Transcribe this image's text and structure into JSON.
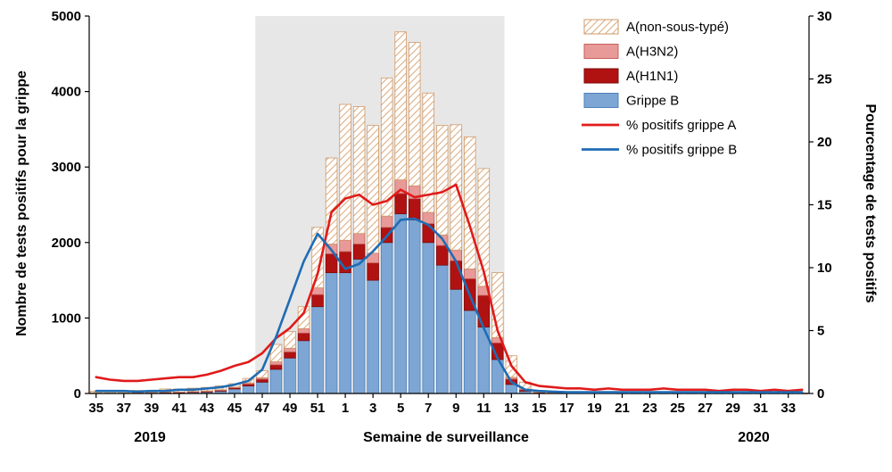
{
  "figure": {
    "left_axis_title": "Nombre de tests positifs pour la grippe",
    "right_axis_title": "Pourcentage de tests positifs",
    "x_axis_title": "Semaine de surveillance",
    "year_left": "2019",
    "year_right": "2020"
  },
  "chart_data": {
    "type": "bar",
    "subtype": "stacked-bars-with-lines",
    "title": "",
    "xlabel": "Semaine de surveillance",
    "x_year_left": "2019",
    "x_year_right": "2020",
    "y_left": {
      "label": "Nombre de tests positifs pour la grippe",
      "min": 0,
      "max": 5000,
      "ticks": [
        0,
        1000,
        2000,
        3000,
        4000,
        5000
      ]
    },
    "y_right": {
      "label": "Pourcentage de tests positifs",
      "min": 0,
      "max": 30,
      "ticks": [
        0,
        5,
        10,
        15,
        20,
        25,
        30
      ]
    },
    "weeks": [
      "35",
      "36",
      "37",
      "38",
      "39",
      "40",
      "41",
      "42",
      "43",
      "44",
      "45",
      "46",
      "47",
      "48",
      "49",
      "50",
      "51",
      "52",
      "1",
      "2",
      "3",
      "4",
      "5",
      "6",
      "7",
      "8",
      "9",
      "10",
      "11",
      "12",
      "13",
      "14",
      "15",
      "16",
      "17",
      "18",
      "19",
      "20",
      "21",
      "22",
      "23",
      "24",
      "25",
      "26",
      "27",
      "28",
      "29",
      "30",
      "31",
      "32",
      "33",
      "34"
    ],
    "x_tick_every": 2,
    "shaded_region": {
      "from_week": "47",
      "to_week": "12",
      "color": "#e7e7e7"
    },
    "bar_series": [
      {
        "key": "grippe-b",
        "name": "Grippe B",
        "color": "#7da6d4",
        "stroke": "#4f81bd",
        "values": [
          5,
          5,
          5,
          8,
          8,
          10,
          10,
          15,
          20,
          30,
          60,
          100,
          150,
          320,
          470,
          700,
          1150,
          1600,
          1600,
          1780,
          1500,
          2000,
          2380,
          2300,
          2000,
          1700,
          1380,
          1100,
          880,
          450,
          120,
          30,
          10,
          5,
          3,
          3,
          3,
          3,
          2,
          2,
          2,
          2,
          2,
          2,
          2,
          2,
          2,
          2,
          2,
          2,
          2,
          2
        ]
      },
      {
        "key": "a-h1n1",
        "name": "A(H1N1)",
        "color": "#b01212",
        "stroke": "#7f0b0b",
        "values": [
          3,
          3,
          3,
          4,
          4,
          5,
          5,
          6,
          8,
          10,
          15,
          25,
          40,
          60,
          80,
          100,
          160,
          250,
          280,
          200,
          230,
          200,
          270,
          280,
          250,
          260,
          380,
          420,
          420,
          220,
          70,
          20,
          5,
          2,
          1,
          1,
          1,
          1,
          1,
          1,
          1,
          1,
          1,
          1,
          1,
          1,
          1,
          1,
          1,
          1,
          1,
          1
        ]
      },
      {
        "key": "a-h3n2",
        "name": "A(H3N2)",
        "color": "#e79a98",
        "stroke": "#c9605c",
        "values": [
          2,
          2,
          2,
          3,
          3,
          5,
          5,
          6,
          7,
          10,
          10,
          15,
          20,
          40,
          50,
          60,
          90,
          130,
          150,
          140,
          130,
          150,
          180,
          170,
          150,
          140,
          140,
          130,
          120,
          70,
          25,
          8,
          3,
          1,
          1,
          1,
          1,
          1,
          0,
          0,
          0,
          0,
          0,
          0,
          0,
          0,
          0,
          0,
          0,
          0,
          0,
          0
        ]
      },
      {
        "key": "a-non-sous-type",
        "name": "A(non-sous-typé)",
        "color": "hatch",
        "stroke": "#cf9a68",
        "hatch_color": "#dba87a",
        "values": [
          20,
          20,
          20,
          25,
          25,
          40,
          40,
          43,
          45,
          50,
          45,
          60,
          90,
          230,
          220,
          290,
          800,
          1140,
          1800,
          1680,
          1690,
          1830,
          1960,
          1900,
          1580,
          1450,
          1660,
          1750,
          1560,
          860,
          285,
          92,
          22,
          7,
          2,
          2,
          2,
          1,
          1,
          1,
          1,
          1,
          1,
          1,
          1,
          1,
          1,
          1,
          1,
          1,
          1,
          1
        ]
      }
    ],
    "line_series": [
      {
        "key": "pct-grippe-a",
        "name": "% positifs grippe A",
        "color": "#e01b1b",
        "axis": "right",
        "values": [
          1.3,
          1.1,
          1.0,
          1.0,
          1.1,
          1.2,
          1.3,
          1.3,
          1.5,
          1.8,
          2.2,
          2.5,
          3.2,
          4.4,
          5.2,
          6.4,
          9.5,
          14.4,
          15.5,
          15.8,
          15.0,
          15.3,
          16.2,
          15.6,
          15.8,
          16.0,
          16.6,
          13.3,
          9.7,
          5.0,
          2.2,
          0.9,
          0.6,
          0.5,
          0.4,
          0.4,
          0.3,
          0.4,
          0.3,
          0.3,
          0.3,
          0.4,
          0.3,
          0.3,
          0.3,
          0.2,
          0.3,
          0.3,
          0.2,
          0.3,
          0.2,
          0.3
        ]
      },
      {
        "key": "pct-grippe-b",
        "name": "% positifs grippe B",
        "color": "#1f6cb4",
        "axis": "right",
        "values": [
          0.2,
          0.2,
          0.2,
          0.15,
          0.2,
          0.2,
          0.3,
          0.3,
          0.4,
          0.5,
          0.7,
          1.0,
          1.9,
          4.5,
          7.5,
          10.5,
          12.7,
          11.4,
          9.9,
          10.3,
          11.3,
          12.5,
          13.8,
          13.9,
          13.4,
          12.3,
          10.5,
          7.8,
          5.2,
          2.8,
          0.9,
          0.3,
          0.2,
          0.15,
          0.1,
          0.1,
          0.1,
          0.1,
          0.1,
          0.1,
          0.1,
          0.1,
          0.1,
          0.1,
          0.1,
          0.1,
          0.1,
          0.1,
          0.1,
          0.1,
          0.1,
          0.1
        ]
      }
    ],
    "legend": [
      {
        "label": "A(non-sous-typé)",
        "type": "bar",
        "series": 3
      },
      {
        "label": "A(H3N2)",
        "type": "bar",
        "series": 2
      },
      {
        "label": "A(H1N1)",
        "type": "bar",
        "series": 1
      },
      {
        "label": "Grippe B",
        "type": "bar",
        "series": 0
      },
      {
        "label": "% positifs grippe A",
        "type": "line",
        "series": 0
      },
      {
        "label": "% positifs grippe B",
        "type": "line",
        "series": 1
      }
    ],
    "legend_position": "top-right-inside",
    "grid": false
  }
}
